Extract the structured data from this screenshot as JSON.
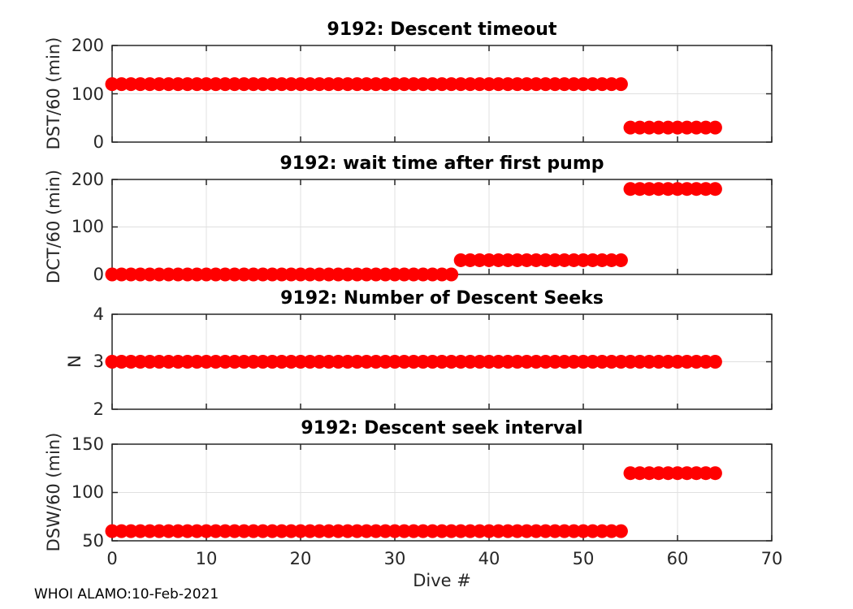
{
  "figure": {
    "footer": "WHOI ALAMO:10-Feb-2021",
    "xlabel": "Dive #",
    "background_color": "#ffffff",
    "marker_color": "#ff0000",
    "axis_color": "#262626",
    "grid_color": "#e0e0e0",
    "title_color": "#000000"
  },
  "chart_data": [
    {
      "type": "scatter",
      "title": "9192: Descent timeout",
      "ylabel": "DST/60 (min)",
      "xlabel": "",
      "xlim": [
        0,
        70
      ],
      "ylim": [
        0,
        200
      ],
      "xticks": [
        0,
        10,
        20,
        30,
        40,
        50,
        60,
        70
      ],
      "yticks": [
        0,
        100,
        200
      ],
      "grid": true,
      "x": [
        0,
        1,
        2,
        3,
        4,
        5,
        6,
        7,
        8,
        9,
        10,
        11,
        12,
        13,
        14,
        15,
        16,
        17,
        18,
        19,
        20,
        21,
        22,
        23,
        24,
        25,
        26,
        27,
        28,
        29,
        30,
        31,
        32,
        33,
        34,
        35,
        36,
        37,
        38,
        39,
        40,
        41,
        42,
        43,
        44,
        45,
        46,
        47,
        48,
        49,
        50,
        51,
        52,
        53,
        54,
        55,
        56,
        57,
        58,
        59,
        60,
        61,
        62,
        63,
        64
      ],
      "y": [
        120,
        120,
        120,
        120,
        120,
        120,
        120,
        120,
        120,
        120,
        120,
        120,
        120,
        120,
        120,
        120,
        120,
        120,
        120,
        120,
        120,
        120,
        120,
        120,
        120,
        120,
        120,
        120,
        120,
        120,
        120,
        120,
        120,
        120,
        120,
        120,
        120,
        120,
        120,
        120,
        120,
        120,
        120,
        120,
        120,
        120,
        120,
        120,
        120,
        120,
        120,
        120,
        120,
        120,
        120,
        30,
        30,
        30,
        30,
        30,
        30,
        30,
        30,
        30,
        30
      ]
    },
    {
      "type": "scatter",
      "title": "9192: wait time after first pump",
      "ylabel": "DCT/60 (min)",
      "xlabel": "",
      "xlim": [
        0,
        70
      ],
      "ylim": [
        0,
        200
      ],
      "xticks": [
        0,
        10,
        20,
        30,
        40,
        50,
        60,
        70
      ],
      "yticks": [
        0,
        100,
        200
      ],
      "grid": true,
      "x": [
        0,
        1,
        2,
        3,
        4,
        5,
        6,
        7,
        8,
        9,
        10,
        11,
        12,
        13,
        14,
        15,
        16,
        17,
        18,
        19,
        20,
        21,
        22,
        23,
        24,
        25,
        26,
        27,
        28,
        29,
        30,
        31,
        32,
        33,
        34,
        35,
        36,
        37,
        38,
        39,
        40,
        41,
        42,
        43,
        44,
        45,
        46,
        47,
        48,
        49,
        50,
        51,
        52,
        53,
        54,
        55,
        56,
        57,
        58,
        59,
        60,
        61,
        62,
        63,
        64
      ],
      "y": [
        0,
        0,
        0,
        0,
        0,
        0,
        0,
        0,
        0,
        0,
        0,
        0,
        0,
        0,
        0,
        0,
        0,
        0,
        0,
        0,
        0,
        0,
        0,
        0,
        0,
        0,
        0,
        0,
        0,
        0,
        0,
        0,
        0,
        0,
        0,
        0,
        0,
        30,
        30,
        30,
        30,
        30,
        30,
        30,
        30,
        30,
        30,
        30,
        30,
        30,
        30,
        30,
        30,
        30,
        30,
        180,
        180,
        180,
        180,
        180,
        180,
        180,
        180,
        180,
        180
      ]
    },
    {
      "type": "scatter",
      "title": "9192: Number of Descent Seeks",
      "ylabel": "N",
      "xlabel": "",
      "xlim": [
        0,
        70
      ],
      "ylim": [
        2,
        4
      ],
      "xticks": [
        0,
        10,
        20,
        30,
        40,
        50,
        60,
        70
      ],
      "yticks": [
        2,
        3,
        4
      ],
      "grid": true,
      "x": [
        0,
        1,
        2,
        3,
        4,
        5,
        6,
        7,
        8,
        9,
        10,
        11,
        12,
        13,
        14,
        15,
        16,
        17,
        18,
        19,
        20,
        21,
        22,
        23,
        24,
        25,
        26,
        27,
        28,
        29,
        30,
        31,
        32,
        33,
        34,
        35,
        36,
        37,
        38,
        39,
        40,
        41,
        42,
        43,
        44,
        45,
        46,
        47,
        48,
        49,
        50,
        51,
        52,
        53,
        54,
        55,
        56,
        57,
        58,
        59,
        60,
        61,
        62,
        63,
        64
      ],
      "y": [
        3,
        3,
        3,
        3,
        3,
        3,
        3,
        3,
        3,
        3,
        3,
        3,
        3,
        3,
        3,
        3,
        3,
        3,
        3,
        3,
        3,
        3,
        3,
        3,
        3,
        3,
        3,
        3,
        3,
        3,
        3,
        3,
        3,
        3,
        3,
        3,
        3,
        3,
        3,
        3,
        3,
        3,
        3,
        3,
        3,
        3,
        3,
        3,
        3,
        3,
        3,
        3,
        3,
        3,
        3,
        3,
        3,
        3,
        3,
        3,
        3,
        3,
        3,
        3,
        3
      ]
    },
    {
      "type": "scatter",
      "title": "9192: Descent seek interval",
      "ylabel": "DSW/60 (min)",
      "xlabel": "Dive #",
      "xlim": [
        0,
        70
      ],
      "ylim": [
        50,
        150
      ],
      "xticks": [
        0,
        10,
        20,
        30,
        40,
        50,
        60,
        70
      ],
      "yticks": [
        50,
        100,
        150
      ],
      "grid": true,
      "x": [
        0,
        1,
        2,
        3,
        4,
        5,
        6,
        7,
        8,
        9,
        10,
        11,
        12,
        13,
        14,
        15,
        16,
        17,
        18,
        19,
        20,
        21,
        22,
        23,
        24,
        25,
        26,
        27,
        28,
        29,
        30,
        31,
        32,
        33,
        34,
        35,
        36,
        37,
        38,
        39,
        40,
        41,
        42,
        43,
        44,
        45,
        46,
        47,
        48,
        49,
        50,
        51,
        52,
        53,
        54,
        55,
        56,
        57,
        58,
        59,
        60,
        61,
        62,
        63,
        64
      ],
      "y": [
        60,
        60,
        60,
        60,
        60,
        60,
        60,
        60,
        60,
        60,
        60,
        60,
        60,
        60,
        60,
        60,
        60,
        60,
        60,
        60,
        60,
        60,
        60,
        60,
        60,
        60,
        60,
        60,
        60,
        60,
        60,
        60,
        60,
        60,
        60,
        60,
        60,
        60,
        60,
        60,
        60,
        60,
        60,
        60,
        60,
        60,
        60,
        60,
        60,
        60,
        60,
        60,
        60,
        60,
        60,
        120,
        120,
        120,
        120,
        120,
        120,
        120,
        120,
        120,
        120
      ]
    }
  ]
}
